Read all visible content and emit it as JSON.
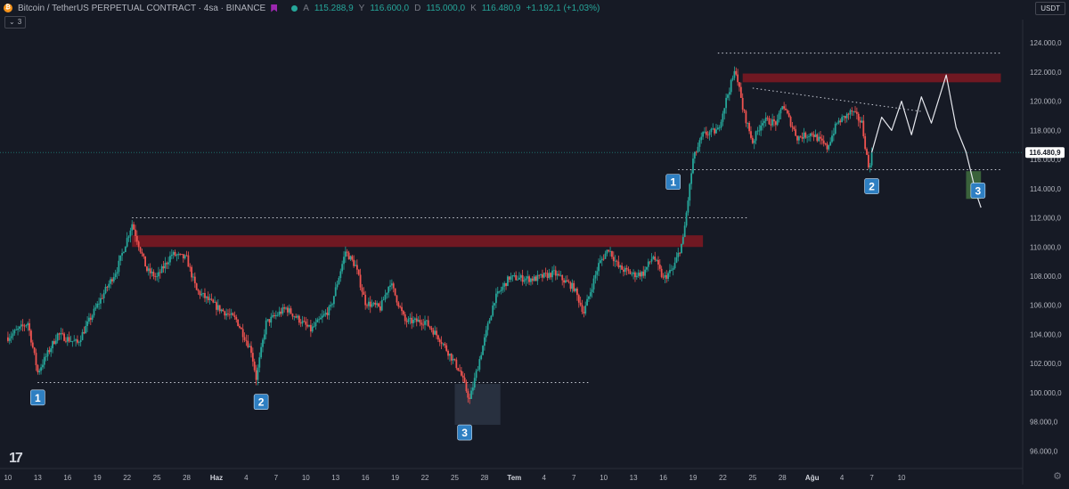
{
  "header": {
    "title": "Bitcoin / TetherUS PERPETUAL CONTRACT · 4sa · BINANCE",
    "ohlc": [
      {
        "label": "A",
        "value": "115.288,9"
      },
      {
        "label": "Y",
        "value": "116.600,0"
      },
      {
        "label": "D",
        "value": "115.000,0"
      },
      {
        "label": "K",
        "value": "116.480,9"
      }
    ],
    "change": "+1.192,1 (+1,03%)",
    "indicator_count": "3",
    "currency": "USDT"
  },
  "icons": {
    "coin": "bitcoin-icon",
    "flag": "flag-icon",
    "eye": "eye-icon",
    "logo": "tradingview-logo",
    "settings": "gear-icon"
  },
  "colors": {
    "background": "#161a25",
    "up": "#26a69a",
    "down": "#ef5350",
    "resistance_zone": "#801922",
    "label_box": "#2e7fc2",
    "price_badge": "#ffffff"
  },
  "chart_data": {
    "type": "candlestick",
    "price_axis": {
      "ticks": [
        96000,
        98000,
        100000,
        102000,
        104000,
        106000,
        108000,
        110000,
        112000,
        114000,
        116000,
        118000,
        120000,
        122000,
        124000
      ],
      "tick_labels": [
        "96.000,0",
        "98.000,0",
        "100.000,0",
        "102.000,0",
        "104.000,0",
        "106.000,0",
        "108.000,0",
        "110.000,0",
        "112.000,0",
        "114.000,0",
        "116.000,0",
        "118.000,0",
        "120.000,0",
        "122.000,0",
        "124.000,0"
      ],
      "range": [
        94800,
        125600
      ]
    },
    "time_axis": {
      "labels": [
        "10",
        "13",
        "16",
        "19",
        "22",
        "25",
        "28",
        "Haz",
        "4",
        "7",
        "10",
        "13",
        "16",
        "19",
        "22",
        "25",
        "28",
        "Tem",
        "4",
        "7",
        "10",
        "13",
        "16",
        "19",
        "22",
        "25",
        "28",
        "Ağu",
        "4",
        "7",
        "10"
      ],
      "bold": [
        "Haz",
        "Tem",
        "Ağu"
      ]
    },
    "current_price": 116480.9,
    "current_price_label": "116.480,9",
    "anchors": [
      {
        "day": 0,
        "price": 103800
      },
      {
        "day": 2,
        "price": 104800
      },
      {
        "day": 3,
        "price": 101400
      },
      {
        "day": 5,
        "price": 104000
      },
      {
        "day": 7,
        "price": 103400
      },
      {
        "day": 9,
        "price": 106000
      },
      {
        "day": 11,
        "price": 108500
      },
      {
        "day": 12.5,
        "price": 111600
      },
      {
        "day": 14,
        "price": 108400
      },
      {
        "day": 15,
        "price": 107900
      },
      {
        "day": 16.5,
        "price": 109500
      },
      {
        "day": 18,
        "price": 109200
      },
      {
        "day": 19,
        "price": 107000
      },
      {
        "day": 21,
        "price": 105900
      },
      {
        "day": 23,
        "price": 105000
      },
      {
        "day": 24.5,
        "price": 102900
      },
      {
        "day": 25,
        "price": 101000
      },
      {
        "day": 26,
        "price": 104800
      },
      {
        "day": 28,
        "price": 105800
      },
      {
        "day": 29.5,
        "price": 104900
      },
      {
        "day": 30.5,
        "price": 104300
      },
      {
        "day": 32.5,
        "price": 105800
      },
      {
        "day": 34,
        "price": 109700
      },
      {
        "day": 35,
        "price": 108700
      },
      {
        "day": 36,
        "price": 106200
      },
      {
        "day": 37.5,
        "price": 105800
      },
      {
        "day": 38.5,
        "price": 107600
      },
      {
        "day": 40,
        "price": 104900
      },
      {
        "day": 42,
        "price": 104900
      },
      {
        "day": 43.5,
        "price": 103700
      },
      {
        "day": 45.5,
        "price": 101500
      },
      {
        "day": 46.5,
        "price": 99500
      },
      {
        "day": 47.5,
        "price": 102300
      },
      {
        "day": 49,
        "price": 106400
      },
      {
        "day": 50.5,
        "price": 107900
      },
      {
        "day": 53,
        "price": 107800
      },
      {
        "day": 55,
        "price": 108200
      },
      {
        "day": 57,
        "price": 107200
      },
      {
        "day": 58,
        "price": 105500
      },
      {
        "day": 59.5,
        "price": 108800
      },
      {
        "day": 60.5,
        "price": 109900
      },
      {
        "day": 61.5,
        "price": 108600
      },
      {
        "day": 63,
        "price": 108100
      },
      {
        "day": 64,
        "price": 108200
      },
      {
        "day": 65,
        "price": 109400
      },
      {
        "day": 66,
        "price": 107800
      },
      {
        "day": 67,
        "price": 108500
      },
      {
        "day": 68,
        "price": 110500
      },
      {
        "day": 69,
        "price": 116000
      },
      {
        "day": 70,
        "price": 117700
      },
      {
        "day": 71.5,
        "price": 118000
      },
      {
        "day": 72.5,
        "price": 120500
      },
      {
        "day": 73.3,
        "price": 122200
      },
      {
        "day": 74,
        "price": 119500
      },
      {
        "day": 75,
        "price": 117200
      },
      {
        "day": 76,
        "price": 118700
      },
      {
        "day": 77.5,
        "price": 118500
      },
      {
        "day": 78,
        "price": 119800
      },
      {
        "day": 79.5,
        "price": 117500
      },
      {
        "day": 81,
        "price": 117800
      },
      {
        "day": 82.5,
        "price": 116800
      },
      {
        "day": 83.5,
        "price": 118500
      },
      {
        "day": 85,
        "price": 119300
      },
      {
        "day": 86,
        "price": 118500
      },
      {
        "day": 86.7,
        "price": 115300
      },
      {
        "day": 87,
        "price": 116480
      }
    ],
    "projection": [
      {
        "day": 87,
        "price": 116480
      },
      {
        "day": 88,
        "price": 118900
      },
      {
        "day": 89,
        "price": 118000
      },
      {
        "day": 90,
        "price": 120000
      },
      {
        "day": 91,
        "price": 117700
      },
      {
        "day": 92,
        "price": 120300
      },
      {
        "day": 93,
        "price": 118500
      },
      {
        "day": 94.5,
        "price": 121800
      },
      {
        "day": 95.5,
        "price": 118200
      },
      {
        "day": 96.5,
        "price": 116500
      },
      {
        "day": 97.5,
        "price": 113700
      },
      {
        "day": 98,
        "price": 112700
      }
    ],
    "resistance_zones": [
      {
        "day_start": 12.5,
        "day_end": 70,
        "top": 110800,
        "bottom": 110000
      },
      {
        "day_start": 74,
        "day_end": 100,
        "top": 121900,
        "bottom": 121300
      }
    ],
    "demand_zone": {
      "day_start": 45,
      "day_end": 49.6,
      "top": 100600,
      "bottom": 97800,
      "color": "#2a3342"
    },
    "target_zone": {
      "day_start": 96.5,
      "day_end": 98,
      "top": 115200,
      "bottom": 113300,
      "color": "#3e6a3e"
    },
    "levels": [
      {
        "day_start": 3,
        "day_end": 58.5,
        "price": 100700
      },
      {
        "day_start": 12.5,
        "day_end": 74.5,
        "price": 112000
      },
      {
        "day_start": 67.5,
        "day_end": 100,
        "price": 115300
      },
      {
        "day_start": 71.5,
        "day_end": 100,
        "price": 123300
      },
      {
        "day_start": 75,
        "day_end": 92,
        "price": 120900,
        "end_price": 119300
      }
    ],
    "labels": [
      {
        "text": "1",
        "day": 3,
        "price": 99700
      },
      {
        "text": "2",
        "day": 25.5,
        "price": 99400
      },
      {
        "text": "3",
        "day": 46,
        "price": 97300
      },
      {
        "text": "1",
        "day": 67,
        "price": 114500
      },
      {
        "text": "2",
        "day": 87,
        "price": 114200
      },
      {
        "text": "3",
        "day": 97.7,
        "price": 113900
      }
    ]
  }
}
